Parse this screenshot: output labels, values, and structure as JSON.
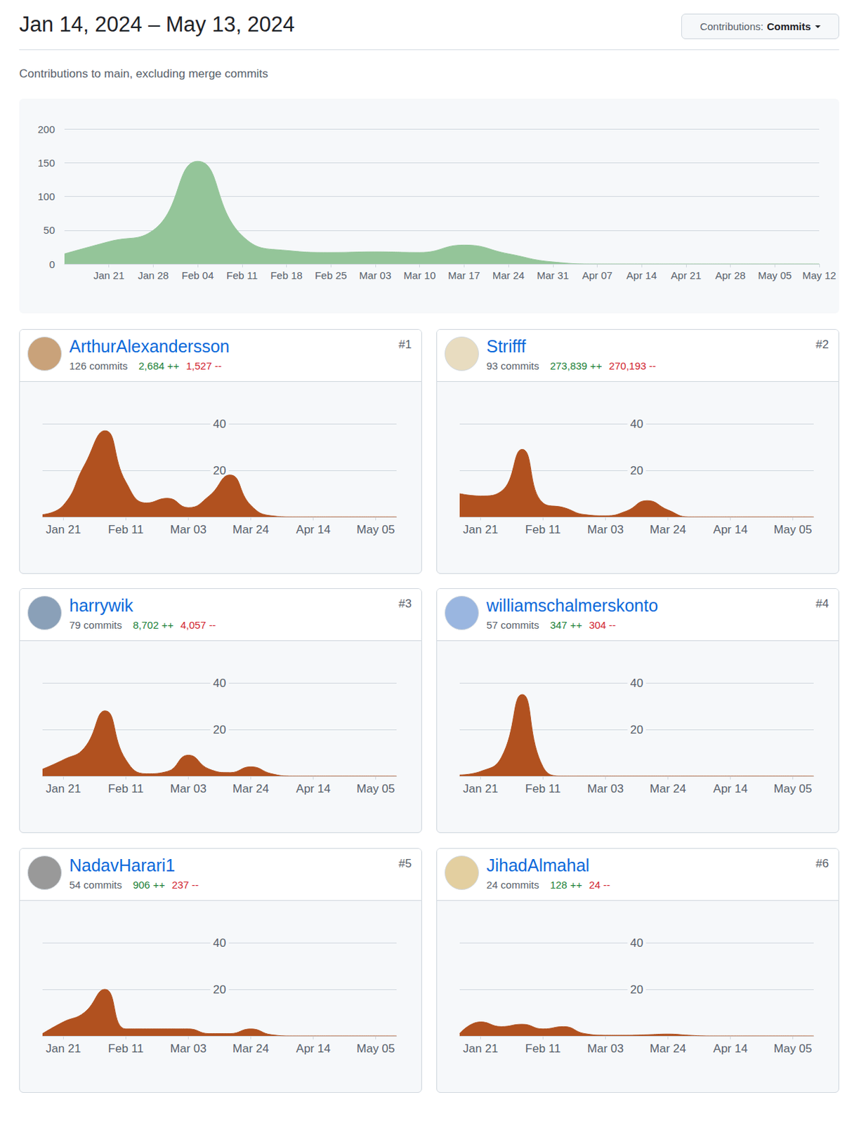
{
  "header": {
    "title": "Jan 14, 2024 – May 13, 2024",
    "dropdown_label": "Contributions:",
    "dropdown_value": "Commits",
    "subtitle": "Contributions to main, excluding merge commits"
  },
  "chart_data": [
    {
      "type": "area",
      "x": [
        null,
        "Jan 21",
        "Jan 28",
        "Feb 04",
        "Feb 11",
        "Feb 18",
        "Feb 25",
        "Mar 03",
        "Mar 10",
        "Mar 17",
        "Mar 24",
        "Mar 31",
        "Apr 07",
        "Apr 14",
        "Apr 21",
        "Apr 28",
        "May 05",
        "May 12"
      ],
      "values": [
        15,
        33,
        50,
        152,
        42,
        20,
        17,
        18,
        17,
        28,
        15,
        3,
        0,
        0,
        0,
        0,
        0,
        0
      ],
      "color": "#94c599",
      "ylim": [
        0,
        200
      ],
      "yticks": [
        0,
        50,
        100,
        150,
        200
      ],
      "grid": true
    },
    {
      "type": "area",
      "x": [
        null,
        "Jan 21",
        null,
        null,
        "Feb 11",
        null,
        null,
        "Mar 03",
        null,
        null,
        "Mar 24",
        null,
        null,
        "Apr 14",
        null,
        null,
        "May 05",
        null
      ],
      "values": [
        1,
        5,
        22,
        37,
        15,
        6,
        8,
        4,
        9,
        18,
        5,
        0.5,
        0,
        0,
        0,
        0,
        0,
        0
      ],
      "color": "#b1511f",
      "ylim": [
        0,
        40
      ],
      "yticks": [
        20,
        40
      ],
      "grid": true
    },
    {
      "type": "area",
      "x": [
        null,
        "Jan 21",
        null,
        null,
        "Feb 11",
        null,
        null,
        "Mar 03",
        null,
        null,
        "Mar 24",
        null,
        null,
        "Apr 14",
        null,
        null,
        "May 05",
        null
      ],
      "values": [
        10,
        9,
        11,
        29,
        6,
        4,
        1,
        0.5,
        2.5,
        7,
        3,
        0,
        0,
        0,
        0,
        0,
        0,
        0
      ],
      "color": "#b1511f",
      "ylim": [
        0,
        40
      ],
      "yticks": [
        20,
        40
      ],
      "grid": true
    },
    {
      "type": "area",
      "x": [
        null,
        "Jan 21",
        null,
        null,
        "Feb 11",
        null,
        null,
        "Mar 03",
        null,
        null,
        "Mar 24",
        null,
        null,
        "Apr 14",
        null,
        null,
        "May 05",
        null
      ],
      "values": [
        3,
        7,
        12,
        28,
        7,
        1,
        2,
        9,
        3,
        1.5,
        4,
        1,
        0,
        0,
        0,
        0,
        0,
        0
      ],
      "color": "#b1511f",
      "ylim": [
        0,
        40
      ],
      "yticks": [
        20,
        40
      ],
      "grid": true
    },
    {
      "type": "area",
      "x": [
        null,
        "Jan 21",
        null,
        null,
        "Feb 11",
        null,
        null,
        "Mar 03",
        null,
        null,
        "Mar 24",
        null,
        null,
        "Apr 14",
        null,
        null,
        "May 05",
        null
      ],
      "values": [
        0.5,
        2,
        8,
        35,
        4,
        0,
        0,
        0,
        0,
        0,
        0,
        0,
        0,
        0,
        0,
        0,
        0,
        0
      ],
      "color": "#b1511f",
      "ylim": [
        0,
        40
      ],
      "yticks": [
        20,
        40
      ],
      "grid": true
    },
    {
      "type": "area",
      "x": [
        null,
        "Jan 21",
        null,
        null,
        "Feb 11",
        null,
        null,
        "Mar 03",
        null,
        null,
        "Mar 24",
        null,
        null,
        "Apr 14",
        null,
        null,
        "May 05",
        null
      ],
      "values": [
        1,
        6,
        10,
        20,
        3,
        3,
        3,
        3,
        1,
        1,
        3,
        0.5,
        0,
        0,
        0,
        0,
        0,
        0
      ],
      "color": "#b1511f",
      "ylim": [
        0,
        40
      ],
      "yticks": [
        20,
        40
      ],
      "grid": true
    },
    {
      "type": "area",
      "x": [
        null,
        "Jan 21",
        null,
        null,
        "Feb 11",
        null,
        null,
        "Mar 03",
        null,
        null,
        "Mar 24",
        null,
        null,
        "Apr 14",
        null,
        null,
        "May 05",
        null
      ],
      "values": [
        1,
        6,
        4,
        5,
        3,
        4,
        1,
        0.3,
        0.3,
        0.5,
        0.8,
        0.3,
        0,
        0,
        0,
        0,
        0,
        0
      ],
      "color": "#b1511f",
      "ylim": [
        0,
        40
      ],
      "yticks": [
        20,
        40
      ],
      "grid": true
    }
  ],
  "contributors": [
    {
      "rank": "#1",
      "name": "ArthurAlexandersson",
      "commits": "126 commits",
      "additions": "2,684 ++",
      "deletions": "1,527 --"
    },
    {
      "rank": "#2",
      "name": "Strifff",
      "commits": "93 commits",
      "additions": "273,839 ++",
      "deletions": "270,193 --"
    },
    {
      "rank": "#3",
      "name": "harrywik",
      "commits": "79 commits",
      "additions": "8,702 ++",
      "deletions": "4,057 --"
    },
    {
      "rank": "#4",
      "name": "williamschalmerskonto",
      "commits": "57 commits",
      "additions": "347 ++",
      "deletions": "304 --"
    },
    {
      "rank": "#5",
      "name": "NadavHarari1",
      "commits": "54 commits",
      "additions": "906 ++",
      "deletions": "237 --"
    },
    {
      "rank": "#6",
      "name": "JihadAlmahal",
      "commits": "24 commits",
      "additions": "128 ++",
      "deletions": "24 --"
    }
  ]
}
